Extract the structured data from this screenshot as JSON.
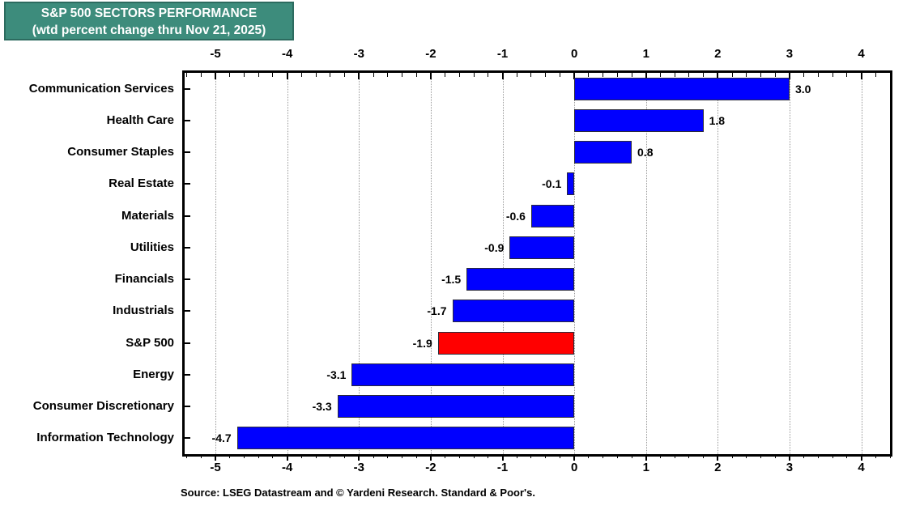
{
  "title": {
    "line1": "S&P 500 SECTORS PERFORMANCE",
    "line2": "(wtd percent change thru Nov 21, 2025)",
    "bg_color": "#3d8c7c",
    "border_color": "#2c6b5f",
    "text_color": "#ffffff"
  },
  "source": "Source: LSEG Datastream and © Yardeni Research. Standard & Poor's.",
  "chart_data": {
    "type": "bar",
    "orientation": "horizontal",
    "title": "S&P 500 SECTORS PERFORMANCE (wtd percent change thru Nov 21, 2025)",
    "categories": [
      "Communication Services",
      "Health Care",
      "Consumer Staples",
      "Real Estate",
      "Materials",
      "Utilities",
      "Financials",
      "Industrials",
      "S&P 500",
      "Energy",
      "Consumer Discretionary",
      "Information Technology"
    ],
    "values": [
      3.0,
      1.8,
      0.8,
      -0.1,
      -0.6,
      -0.9,
      -1.5,
      -1.7,
      -1.9,
      -3.1,
      -3.3,
      -4.7
    ],
    "value_labels": [
      "3.0",
      "1.8",
      "0.8",
      "-0.1",
      "-0.6",
      "-0.9",
      "-1.5",
      "-1.7",
      "-1.9",
      "-3.1",
      "-3.3",
      "-4.7"
    ],
    "highlight_category": "S&P 500",
    "bar_color": "#0000ff",
    "highlight_color": "#ff0000",
    "xlim": [
      -5.43,
      4.4
    ],
    "x_ticks": [
      -5,
      -4,
      -3,
      -2,
      -1,
      0,
      1,
      2,
      3,
      4
    ],
    "x_tick_labels": [
      "-5",
      "-4",
      "-3",
      "-2",
      "-1",
      "0",
      "1",
      "2",
      "3",
      "4"
    ],
    "minor_tick_step": 0.2,
    "grid": "vertical dotted gridlines at integer ticks",
    "axes_with_tick_labels": [
      "top",
      "bottom"
    ],
    "legend": "none"
  }
}
